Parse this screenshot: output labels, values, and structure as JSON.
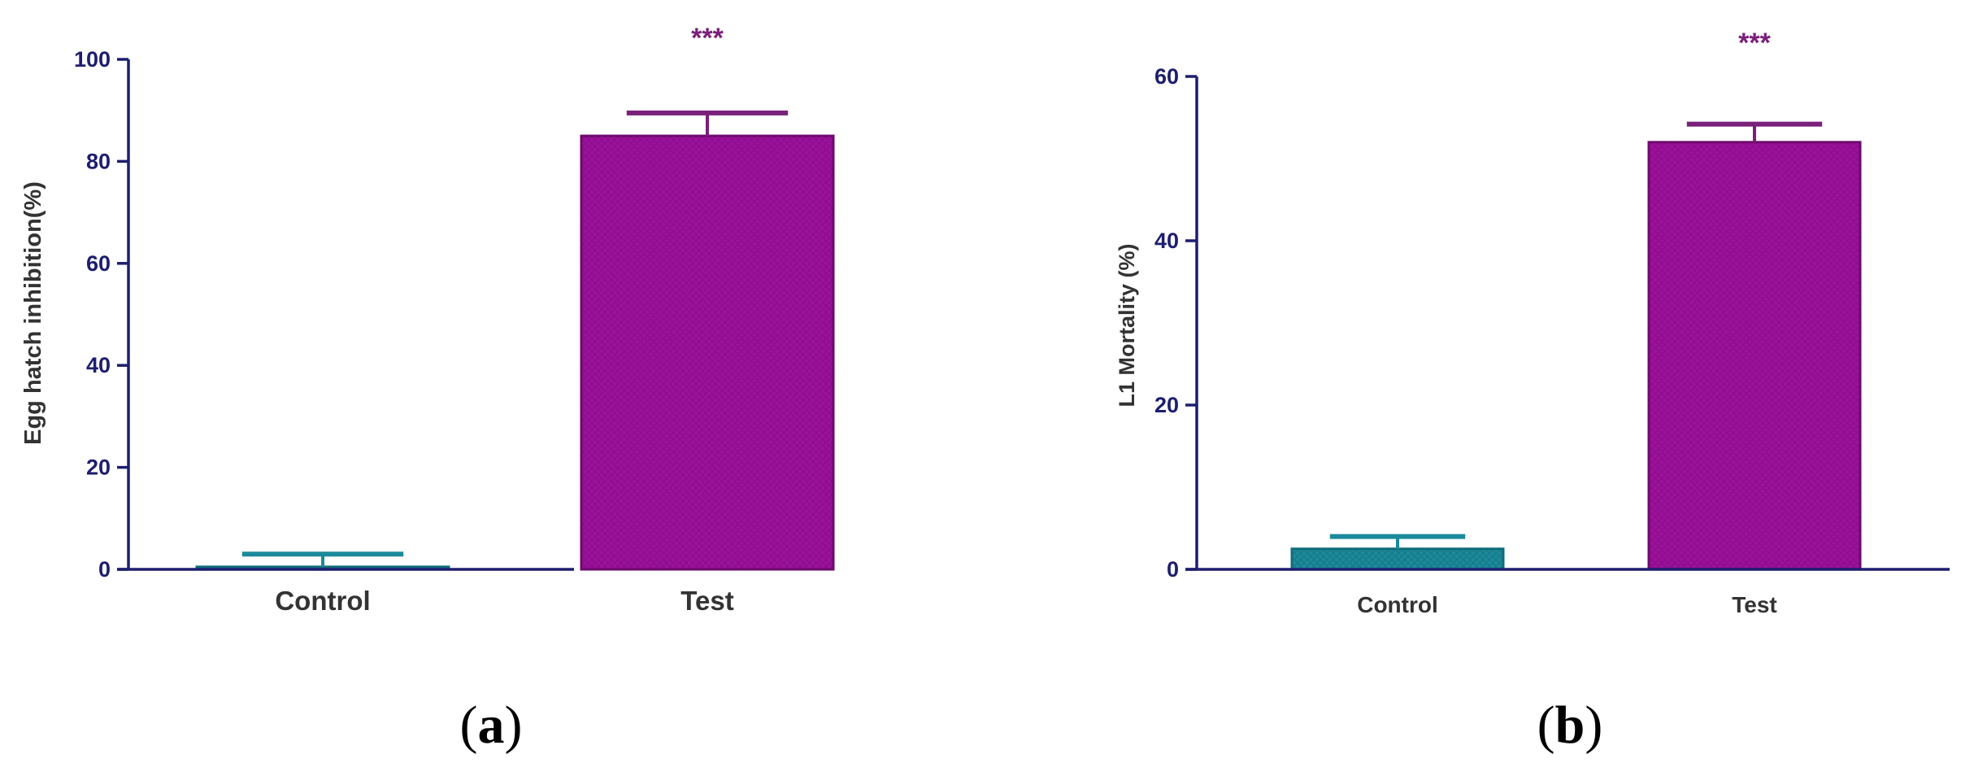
{
  "chart_data": [
    {
      "type": "bar",
      "panel_label": "a",
      "ylabel": "Egg hatch inhibition(%)",
      "ylim": [
        0,
        100
      ],
      "yticks": [
        "0",
        "20",
        "40",
        "60",
        "80",
        "100"
      ],
      "categories": [
        "Control",
        "Test"
      ],
      "values": [
        0.5,
        85
      ],
      "errors": [
        2.5,
        4.5
      ],
      "significance": [
        "",
        "***"
      ],
      "colors": [
        "#1b8a9a",
        "#9b119b"
      ],
      "grid": false
    },
    {
      "type": "bar",
      "panel_label": "b",
      "ylabel": "L1 Mortality  (%)",
      "ylim": [
        0,
        60
      ],
      "yticks": [
        "0",
        "20",
        "40",
        "60"
      ],
      "categories": [
        "Control",
        "Test"
      ],
      "values": [
        2.5,
        52
      ],
      "errors": [
        1.5,
        2.2
      ],
      "significance": [
        "",
        "***"
      ],
      "colors": [
        "#1b8a9a",
        "#9b119b"
      ],
      "grid": false
    }
  ]
}
